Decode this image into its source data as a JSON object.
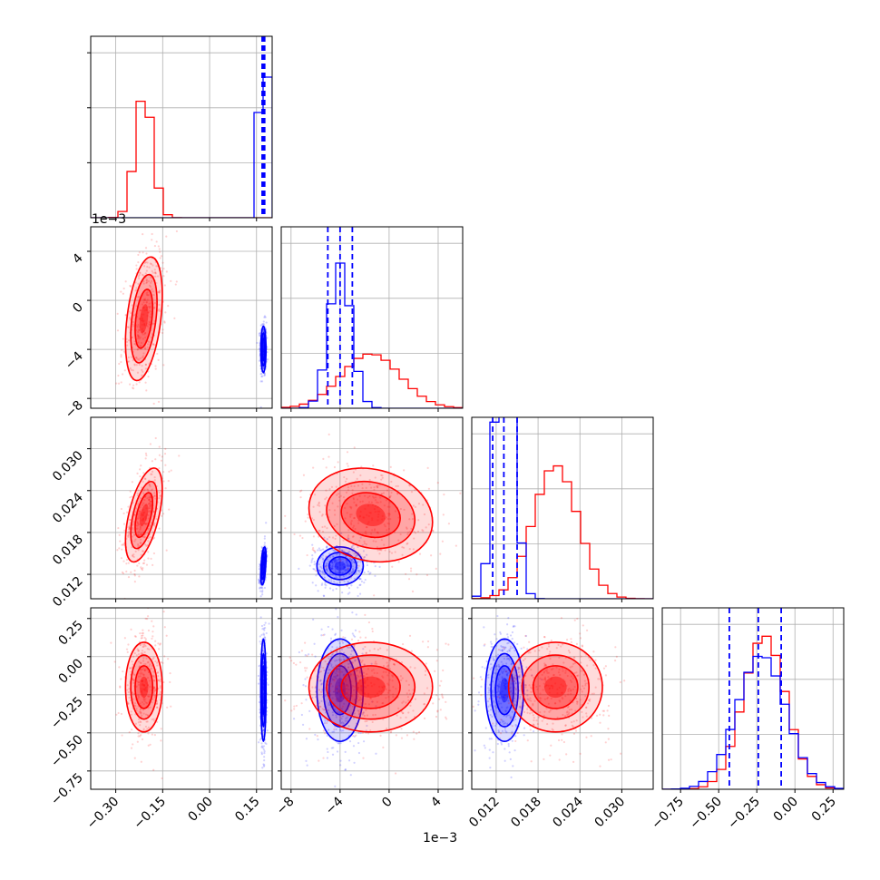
{
  "colors": {
    "series_a": "#ff0000",
    "series_b": "#0000ff",
    "grid": "#b0b0b0"
  },
  "offsets": {
    "p0": "1e−3",
    "p1": "1e−3"
  },
  "series": [
    {
      "color": "#ff0000"
    },
    {
      "color": "#0000ff"
    }
  ],
  "chart_data": {
    "type": "corner",
    "n_params": 4,
    "grid": true,
    "params": [
      {
        "range": [
          -0.38,
          0.2
        ],
        "ticks": [
          -0.3,
          -0.15,
          0.0,
          0.15
        ],
        "tick_labels": [
          "−0.30",
          "−0.15",
          "0.00",
          "0.15"
        ],
        "scale": 1
      },
      {
        "range": [
          -8.8,
          6.0
        ],
        "ticks": [
          -8,
          -4,
          0,
          4
        ],
        "tick_labels": [
          "−8",
          "−4",
          "0",
          "4"
        ],
        "scale": 0.001,
        "offset_text": "1e−3"
      },
      {
        "range": [
          0.0085,
          0.0345
        ],
        "ticks": [
          0.012,
          0.018,
          0.024,
          0.03
        ],
        "tick_labels": [
          "0.012",
          "0.018",
          "0.024",
          "0.030"
        ],
        "scale": 1
      },
      {
        "range": [
          -0.87,
          0.32
        ],
        "ticks": [
          -0.75,
          -0.5,
          -0.25,
          0.0,
          0.25
        ],
        "tick_labels": [
          "−0.75",
          "−0.50",
          "−0.25",
          "0.00",
          "0.25"
        ],
        "scale": 1
      }
    ],
    "distributions": [
      {
        "color": "#ff0000",
        "mean": [
          -0.21,
          -1.5,
          0.0205,
          -0.2
        ],
        "std": [
          0.028,
          2.4,
          0.0032,
          0.14
        ],
        "corr": {
          "1-2": 0.38,
          "1-3": 0.55,
          "2-3": -0.15
        }
      },
      {
        "color": "#0000ff",
        "mean": [
          0.172,
          -4.0,
          0.0132,
          -0.22
        ],
        "std": [
          0.004,
          0.9,
          0.0013,
          0.16
        ],
        "corr": {
          "1-3": 0.45
        }
      }
    ],
    "quantile_lines": [
      [
        0.168,
        0.172,
        0.176
      ],
      [
        -5.0,
        -4.0,
        -3.0
      ],
      [
        0.0115,
        0.0131,
        0.015
      ],
      [
        -0.43,
        -0.24,
        -0.09
      ]
    ],
    "hist_ylim": [
      [
        0,
        0.6
      ],
      [
        0,
        0.41
      ],
      [
        0,
        0.22
      ],
      [
        0,
        0.2
      ]
    ]
  }
}
